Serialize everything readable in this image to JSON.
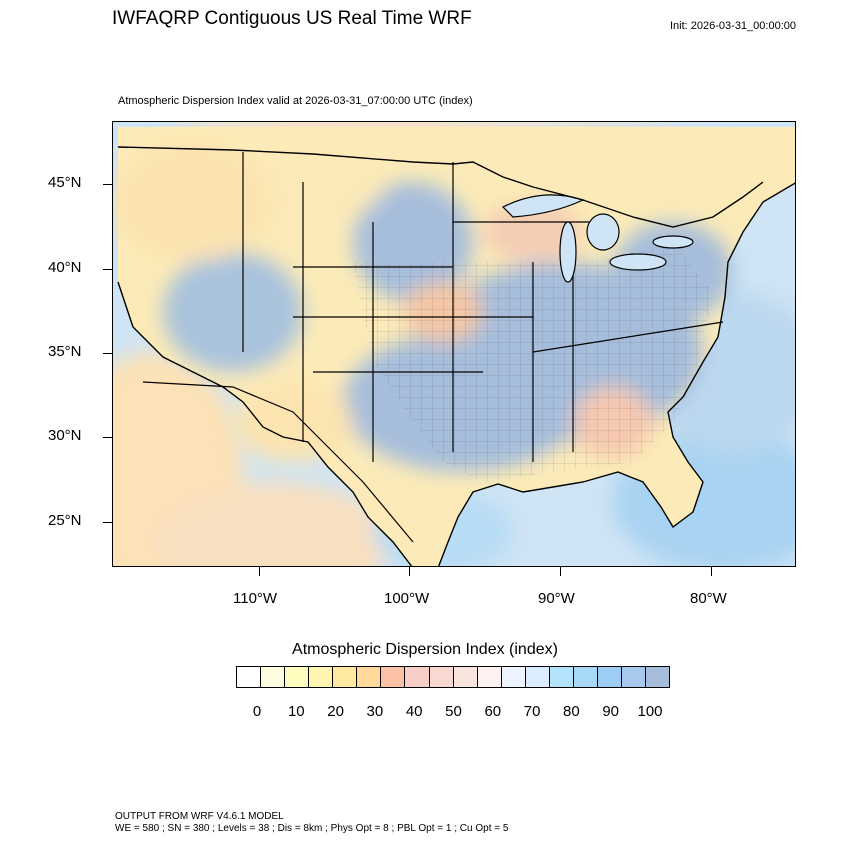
{
  "header": {
    "title": "IWFAQRP Contiguous US Real Time WRF",
    "init": "Init: 2026-03-31_00:00:00",
    "field_title": "Atmospheric Dispersion Index valid at 2026-03-31_07:00:00 UTC   (index)"
  },
  "map": {
    "lat_labels": [
      "45°N",
      "40°N",
      "35°N",
      "30°N",
      "25°N"
    ],
    "lon_labels": [
      "110°W",
      "100°W",
      "90°W",
      "80°W"
    ],
    "colors": {
      "land_low": "#fce8b4",
      "land_mid": "#f7d0b8",
      "land_high": "#a7bdd6",
      "ocean": "#cfe4f4",
      "border": "#000000"
    }
  },
  "legend": {
    "title": "Atmospheric Dispersion Index  (index)",
    "colors": [
      "#ffffff",
      "#fffde0",
      "#fffcc0",
      "#fff4b0",
      "#ffe8a0",
      "#ffd89a",
      "#fcc2a6",
      "#f7cfc8",
      "#f7d9d2",
      "#fae4de",
      "#fdf1f1",
      "#eef4ff",
      "#dcecff",
      "#b3e3fb",
      "#a8d8f8",
      "#9dccf5",
      "#a9c8ee",
      "#a6bedc"
    ],
    "ticks": [
      "0",
      "10",
      "20",
      "30",
      "40",
      "50",
      "60",
      "70",
      "80",
      "90",
      "100"
    ]
  },
  "footer": {
    "line1": "OUTPUT FROM WRF V4.6.1 MODEL",
    "line2": "WE = 580 ; SN = 380 ; Levels = 38 ; Dis = 8km ; Phys Opt = 8 ; PBL Opt = 1 ; Cu Opt = 5"
  }
}
